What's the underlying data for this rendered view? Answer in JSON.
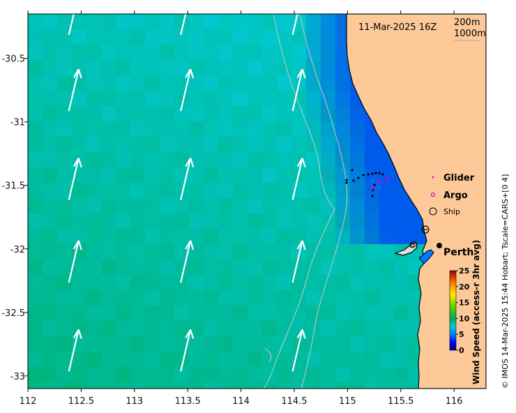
{
  "map": {
    "timestamp": "11-Mar-2025 16Z",
    "depth_contours": [
      "200m",
      "1000m"
    ],
    "city": "Perth",
    "x_ticks": [
      "112",
      "112.5",
      "113",
      "113.5",
      "114",
      "114.5",
      "115",
      "115.5",
      "116"
    ],
    "y_ticks": [
      "-30.5",
      "-31",
      "-31.5",
      "-32",
      "-32.5",
      "-33"
    ],
    "lon_range": [
      112,
      116.3
    ],
    "lat_range": [
      -33.1,
      -30.15
    ]
  },
  "legend": {
    "glider": "Glider",
    "argo": "Argo",
    "ship": "Ship",
    "glider_color": "#e000e0",
    "argo_color": "#e000e0"
  },
  "colorbar": {
    "title": "Wind Speed (access-r 3hr avg)",
    "ticks": [
      "25",
      "20",
      "15",
      "10",
      "5",
      "0"
    ],
    "range": [
      0,
      25
    ]
  },
  "credit": "© IMOS 14-Mar-2025 15:44 Hobart; Tscale=CARS+[0 4]",
  "colors": {
    "land": "#fdc999",
    "ocean_low": "#00aa55",
    "ocean_high": "#00ccdd",
    "near_coast": "#0066ee",
    "coast_line": "#000000",
    "contour": "#c8c8c8",
    "wind_arrow": "#ffffff"
  }
}
